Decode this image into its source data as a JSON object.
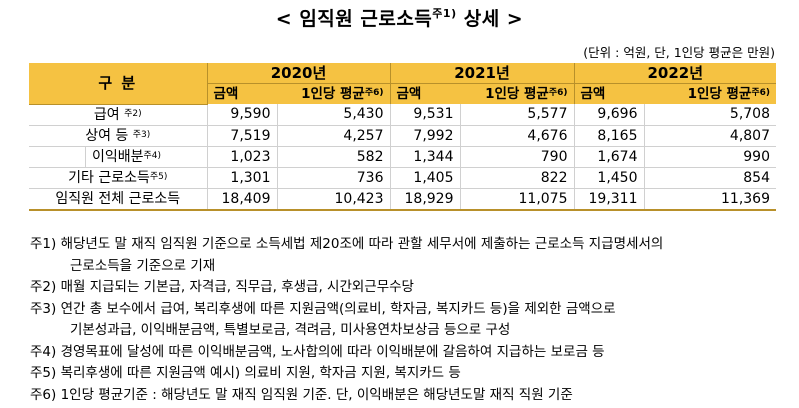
{
  "title": {
    "prefix": "< ",
    "main": "임직원 근로소득",
    "note": "주1)",
    "suffix": " 상세 >"
  },
  "unit": "(단위 : 억원, 단, 1인당 평균은 만원)",
  "table": {
    "category_header": "구 분",
    "years": [
      "2020년",
      "2021년",
      "2022년"
    ],
    "sub_amount": "금액",
    "sub_avg": "1인당 평균",
    "sub_avg_note": "주6)",
    "rows": [
      {
        "label": "급여",
        "note": "주2)",
        "values": [
          "9,590",
          "5,430",
          "9,531",
          "5,577",
          "9,696",
          "5,708"
        ]
      },
      {
        "label": "상여 등",
        "note": "주3)",
        "values": [
          "7,519",
          "4,257",
          "7,992",
          "4,676",
          "8,165",
          "4,807"
        ]
      },
      {
        "label": "이익배분",
        "note": "주4)",
        "values": [
          "1,023",
          "582",
          "1,344",
          "790",
          "1,674",
          "990"
        ]
      },
      {
        "label": "기타 근로소득",
        "note": "주5)",
        "values": [
          "1,301",
          "736",
          "1,405",
          "822",
          "1,450",
          "854"
        ]
      },
      {
        "label": "임직원 전체 근로소득",
        "note": "",
        "values": [
          "18,409",
          "10,423",
          "18,929",
          "11,075",
          "19,311",
          "11,369"
        ]
      }
    ]
  },
  "notes": [
    {
      "line": "주1) 해당년도 말 재직 임직원 기준으로 소득세법 제20조에 따라 관할 세무서에 제출하는 근로소득 지급명세서의",
      "cont": "근로소득을 기준으로 기재"
    },
    {
      "line": "주2) 매월 지급되는 기본급, 자격급, 직무급, 후생급, 시간외근무수당",
      "cont": ""
    },
    {
      "line": "주3) 연간 총 보수에서 급여, 복리후생에 따른 지원금액(의료비, 학자금, 복지카드 등)을 제외한 금액으로",
      "cont": "기본성과급, 이익배분금액, 특별보로금, 격려금, 미사용연차보상금 등으로 구성"
    },
    {
      "line": "주4) 경영목표에 달성에 따른 이익배분금액, 노사합의에 따라 이익배분에 갈음하여 지급하는 보로금 등",
      "cont": ""
    },
    {
      "line": "주5) 복리후생에 따른 지원금액  예시) 의료비 지원, 학자금 지원, 복지카드 등",
      "cont": ""
    },
    {
      "line": "주6) 1인당 평균기준 : 해당년도 말 재직 임직원 기준. 단, 이익배분은 해당년도말 재직 직원 기준",
      "cont": ""
    }
  ]
}
